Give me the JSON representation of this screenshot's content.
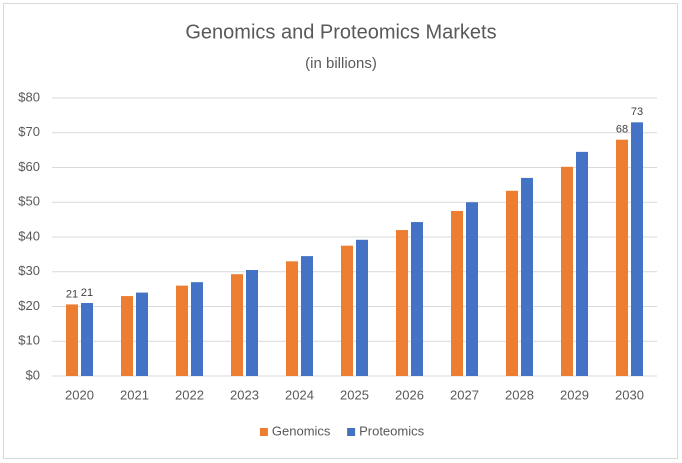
{
  "chart_data": {
    "type": "bar",
    "title": "Genomics and Proteomics Markets",
    "subtitle": "(in billions)",
    "categories": [
      "2020",
      "2021",
      "2022",
      "2023",
      "2024",
      "2025",
      "2026",
      "2027",
      "2028",
      "2029",
      "2030"
    ],
    "series": [
      {
        "name": "Genomics",
        "color": "#ED7D31",
        "values": [
          20.6,
          23,
          26,
          29.3,
          33,
          37.5,
          42,
          47.5,
          53.3,
          60.2,
          68
        ],
        "value_labels": [
          "21",
          null,
          null,
          null,
          null,
          null,
          null,
          null,
          null,
          null,
          "68"
        ]
      },
      {
        "name": "Proteomics",
        "color": "#4472C4",
        "values": [
          21,
          24,
          27,
          30.5,
          34.5,
          39.2,
          44.3,
          50,
          57,
          64.5,
          73
        ],
        "value_labels": [
          "21",
          null,
          null,
          null,
          null,
          null,
          null,
          null,
          null,
          null,
          "73"
        ]
      }
    ],
    "ylim": [
      0,
      80
    ],
    "yticks": [
      {
        "value": 0,
        "label": "$0"
      },
      {
        "value": 10,
        "label": "$10"
      },
      {
        "value": 20,
        "label": "$20"
      },
      {
        "value": 30,
        "label": "$30"
      },
      {
        "value": 40,
        "label": "$40"
      },
      {
        "value": 50,
        "label": "$50"
      },
      {
        "value": 60,
        "label": "$60"
      },
      {
        "value": 70,
        "label": "$70"
      },
      {
        "value": 80,
        "label": "$80"
      }
    ],
    "grid": true,
    "legend": "bottom"
  }
}
